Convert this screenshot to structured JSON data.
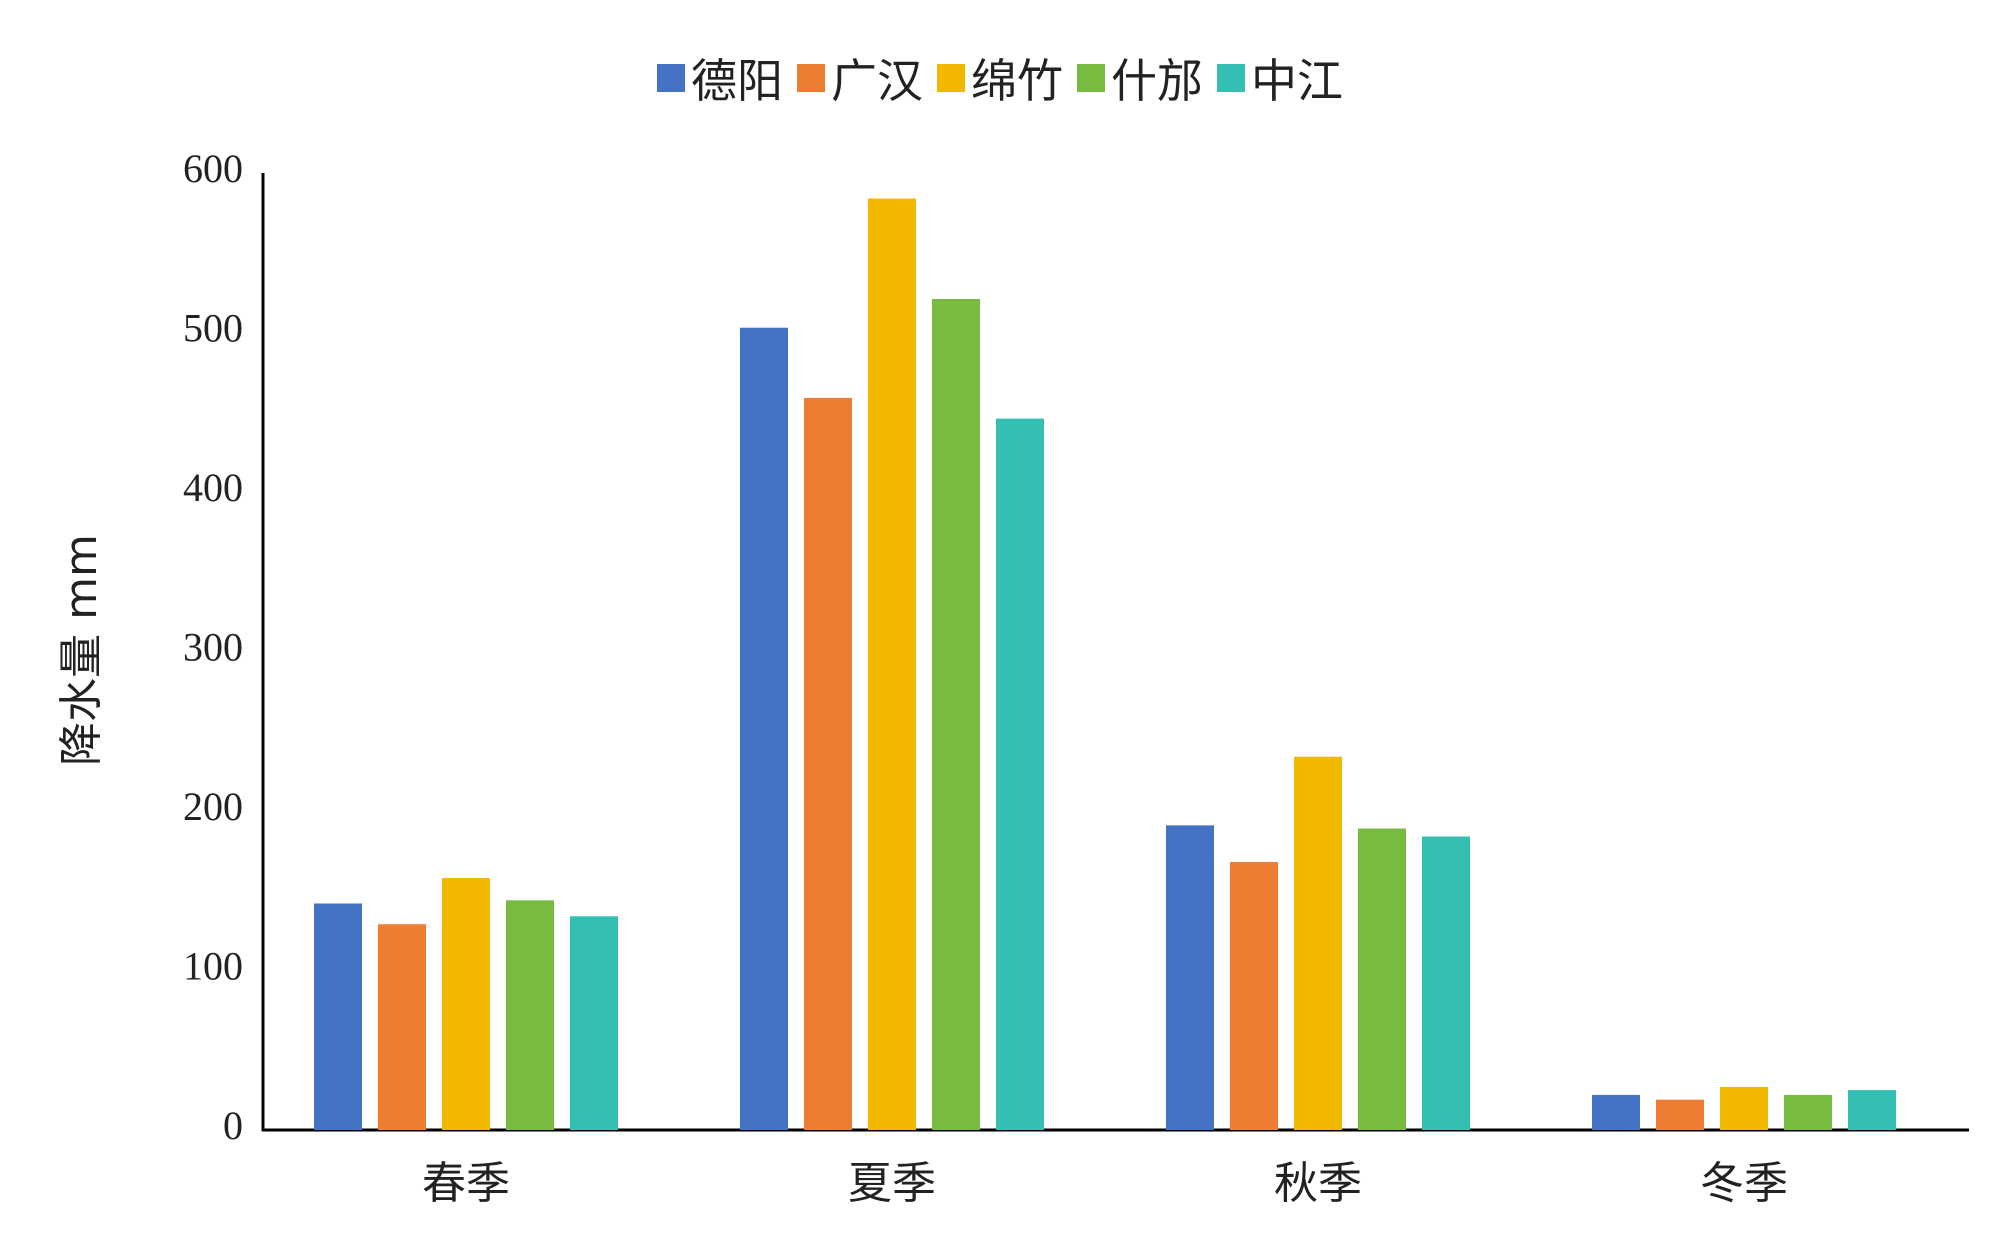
{
  "chart_data": {
    "type": "bar",
    "y_label": "降水量 mm",
    "categories": [
      "春季",
      "夏季",
      "秋季",
      "冬季"
    ],
    "series": [
      {
        "name": "德阳",
        "color": "#4472c4",
        "values": [
          142,
          503,
          191,
          22
        ]
      },
      {
        "name": "广汉",
        "color": "#ed7d31",
        "values": [
          129,
          459,
          168,
          19
        ]
      },
      {
        "name": "绵竹",
        "color": "#f2b800",
        "values": [
          158,
          584,
          234,
          27
        ]
      },
      {
        "name": "什邡",
        "color": "#77bb41",
        "values": [
          144,
          521,
          189,
          22
        ]
      },
      {
        "name": "中江",
        "color": "#33bfb3",
        "values": [
          134,
          446,
          184,
          25
        ]
      }
    ],
    "ylim": [
      0,
      600
    ],
    "yticks": [
      0,
      100,
      200,
      300,
      400,
      500,
      600
    ],
    "grid": false
  }
}
